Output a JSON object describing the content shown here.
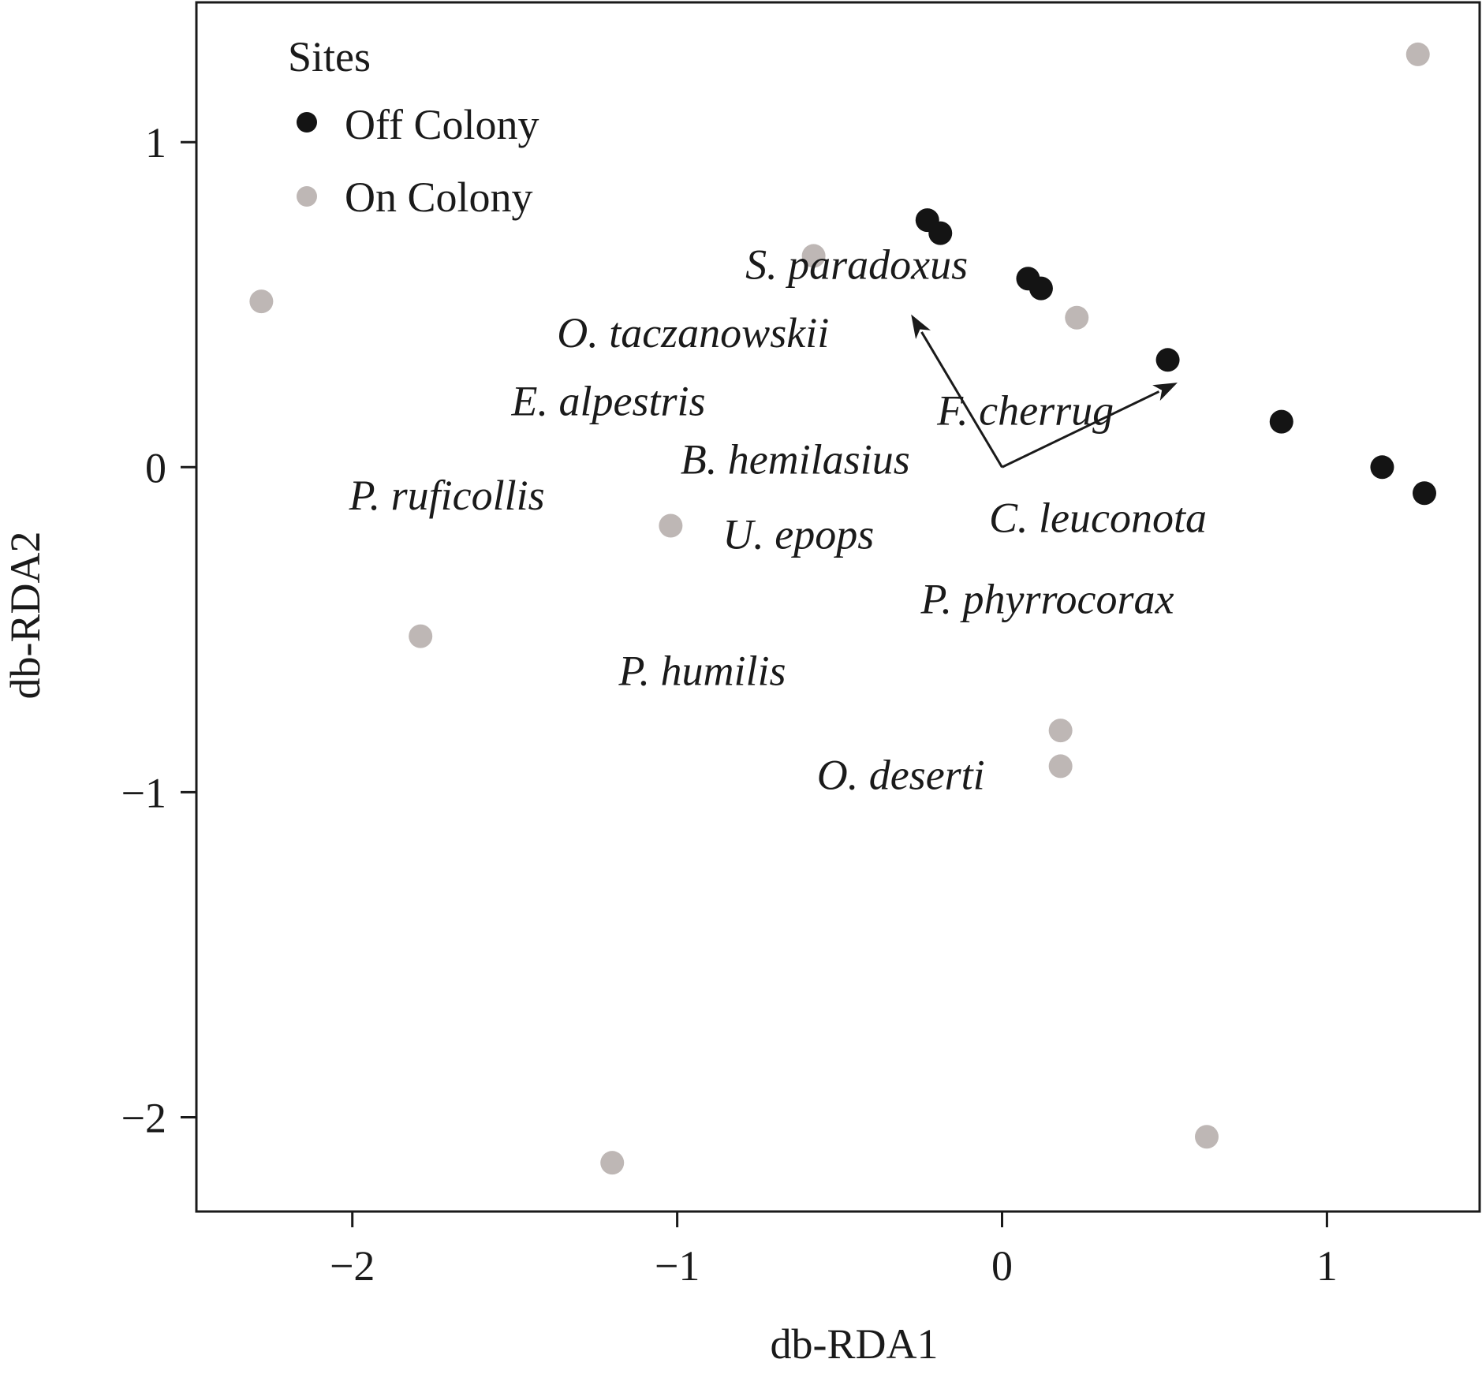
{
  "chart_data": {
    "type": "scatter",
    "xlabel": "db-RDA1",
    "ylabel": "db-RDA2",
    "xlim": [
      -2.48,
      1.47
    ],
    "ylim": [
      -2.29,
      1.43
    ],
    "xticks": [
      -2,
      -1,
      0,
      1
    ],
    "yticks": [
      -2,
      -1,
      0,
      1
    ],
    "xtick_labels": [
      "−2",
      "−1",
      "0",
      "1"
    ],
    "ytick_labels": [
      "−2",
      "−1",
      "0",
      "1"
    ],
    "grid": false,
    "legend": {
      "title": "Sites",
      "position": "top-left",
      "entries": [
        {
          "label": "Off Colony",
          "color": "#141414"
        },
        {
          "label": "On Colony",
          "color": "#beb7b5"
        }
      ]
    },
    "series": [
      {
        "name": "Off Colony",
        "color": "#141414",
        "points": [
          {
            "x": -0.23,
            "y": 0.76
          },
          {
            "x": -0.19,
            "y": 0.72
          },
          {
            "x": 0.08,
            "y": 0.58
          },
          {
            "x": 0.12,
            "y": 0.55
          },
          {
            "x": 0.51,
            "y": 0.33
          },
          {
            "x": 0.86,
            "y": 0.14
          },
          {
            "x": 1.17,
            "y": 0.0
          },
          {
            "x": 1.3,
            "y": -0.08
          }
        ]
      },
      {
        "name": "On Colony",
        "color": "#beb7b5",
        "points": [
          {
            "x": -2.28,
            "y": 0.51
          },
          {
            "x": -0.58,
            "y": 0.65
          },
          {
            "x": 0.23,
            "y": 0.46
          },
          {
            "x": 1.28,
            "y": 1.27
          },
          {
            "x": -1.02,
            "y": -0.18
          },
          {
            "x": -1.79,
            "y": -0.52
          },
          {
            "x": 0.18,
            "y": -0.81
          },
          {
            "x": 0.18,
            "y": -0.92
          },
          {
            "x": -1.2,
            "y": -2.14
          },
          {
            "x": 0.63,
            "y": -2.06
          }
        ]
      }
    ],
    "vectors": [
      {
        "x": -0.28,
        "y": 0.47
      },
      {
        "x": 0.54,
        "y": 0.26
      }
    ],
    "annotations": [
      {
        "text": "S. paradoxus",
        "x": -0.79,
        "y": 0.58
      },
      {
        "text": "O. taczanowskii",
        "x": -1.37,
        "y": 0.37
      },
      {
        "text": "E. alpestris",
        "x": -1.51,
        "y": 0.16
      },
      {
        "text": "F. cherrug",
        "x": -0.2,
        "y": 0.13
      },
      {
        "text": "B. hemilasius",
        "x": -0.99,
        "y": -0.02
      },
      {
        "text": "P. ruficollis",
        "x": -2.01,
        "y": -0.13
      },
      {
        "text": "U. epops",
        "x": -0.86,
        "y": -0.25
      },
      {
        "text": "C. leuconota",
        "x": -0.04,
        "y": -0.2
      },
      {
        "text": "P. phyrrocorax",
        "x": -0.25,
        "y": -0.45
      },
      {
        "text": "P. humilis",
        "x": -1.18,
        "y": -0.67
      },
      {
        "text": "O. deserti",
        "x": -0.57,
        "y": -0.99
      }
    ]
  }
}
